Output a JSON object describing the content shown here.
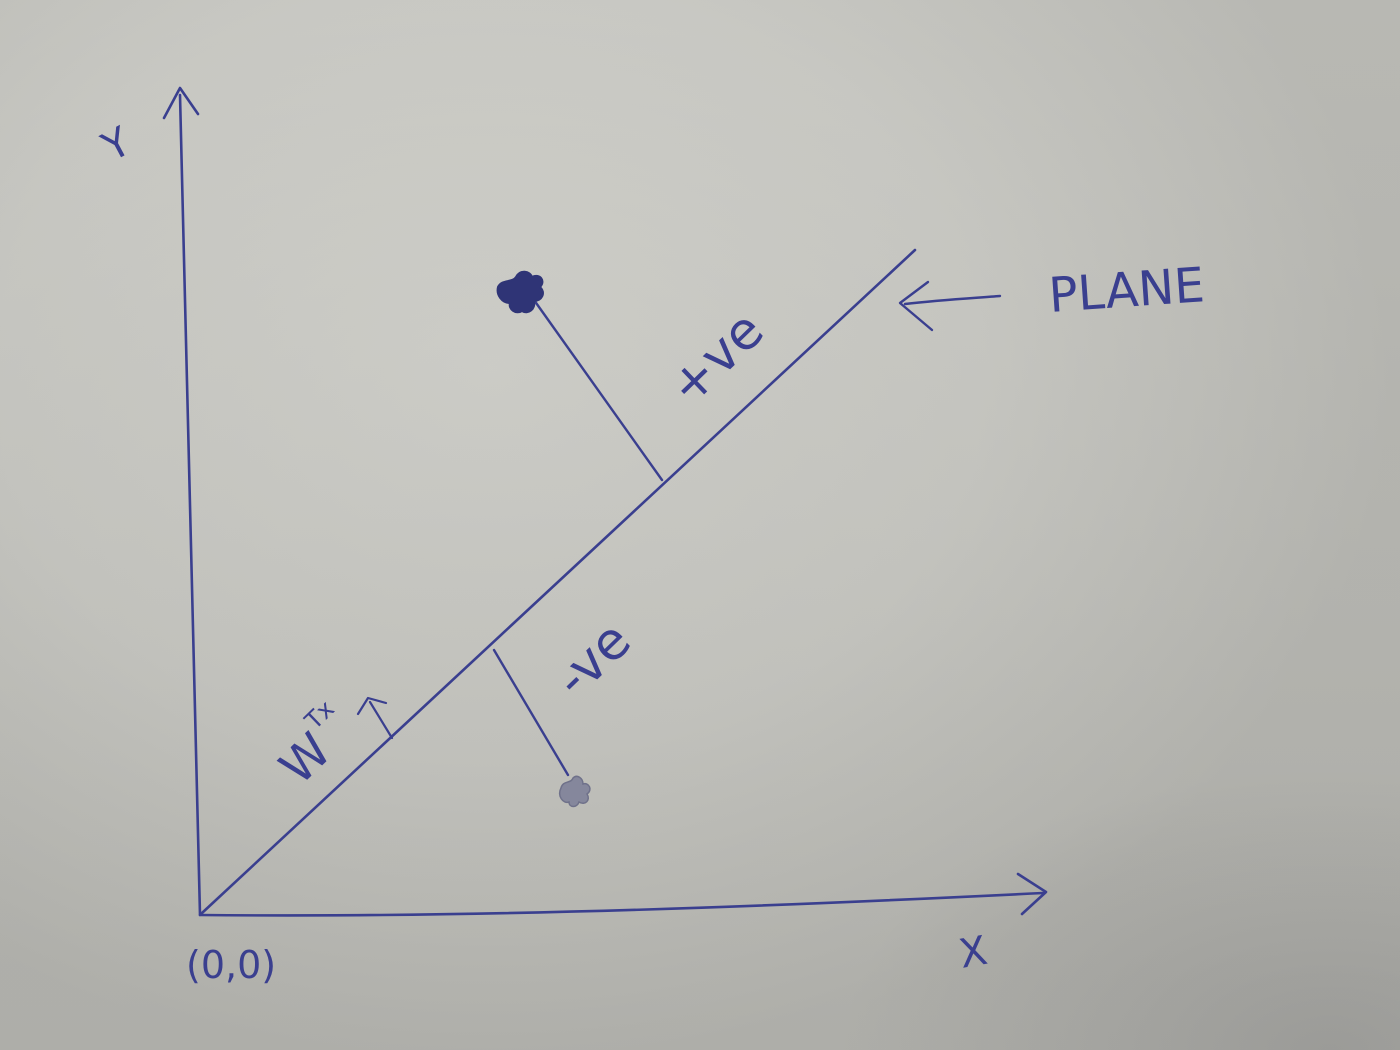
{
  "labels": {
    "y_axis": "Y",
    "x_axis": "X",
    "origin": "(0,0)",
    "plane": "PLANE",
    "positive_side": "+ve",
    "negative_side": "-ve",
    "normal_vector_base": "W",
    "normal_vector_sup": "Tx"
  },
  "colors": {
    "ink": "#3a3f8f",
    "paper": "#e4e4e1",
    "star_light": "#7d7f95"
  }
}
